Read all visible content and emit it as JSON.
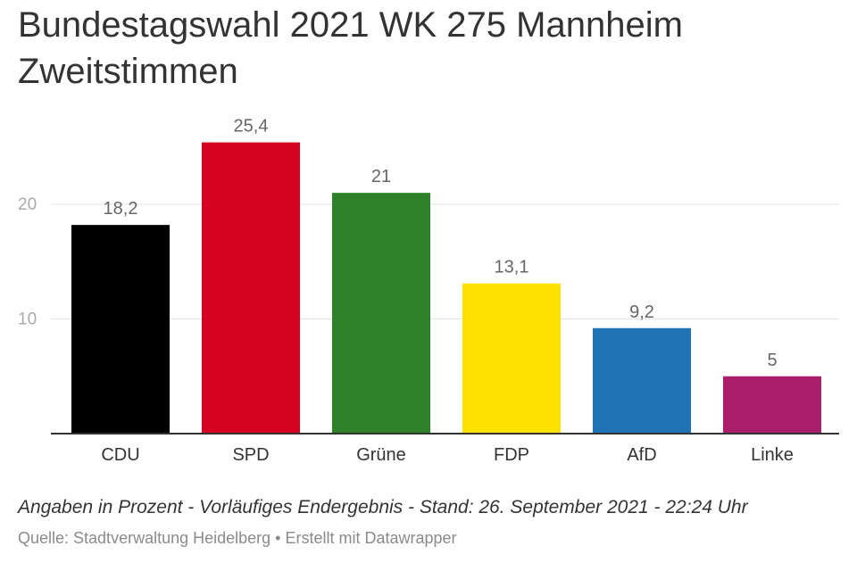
{
  "header": {
    "title": "Bundestagswahl 2021 WK 275 Mannheim Zweitstimmen"
  },
  "footer": {
    "note": "Angaben in Prozent - Vorläufiges Endergebnis - Stand: 26. September 2021 - 22:24 Uhr",
    "source": "Quelle: Stadtverwaltung Heidelberg • Erstellt mit Datawrapper"
  },
  "chart_data": {
    "type": "bar",
    "title": "Bundestagswahl 2021 WK 275 Mannheim Zweitstimmen",
    "xlabel": "",
    "ylabel": "",
    "categories": [
      "CDU",
      "SPD",
      "Grüne",
      "FDP",
      "AfD",
      "Linke"
    ],
    "values": [
      18.2,
      25.4,
      21,
      13.1,
      9.2,
      5
    ],
    "value_labels": [
      "18,2",
      "25,4",
      "21",
      "13,1",
      "9,2",
      "5"
    ],
    "colors": [
      "#000000",
      "#d60020",
      "#2e8128",
      "#ffe200",
      "#2073b4",
      "#a91d6a"
    ],
    "yticks": [
      10,
      20
    ],
    "ytick_labels": [
      "10",
      "20"
    ],
    "ylim": [
      0,
      30
    ],
    "grid": true,
    "legend": false
  }
}
